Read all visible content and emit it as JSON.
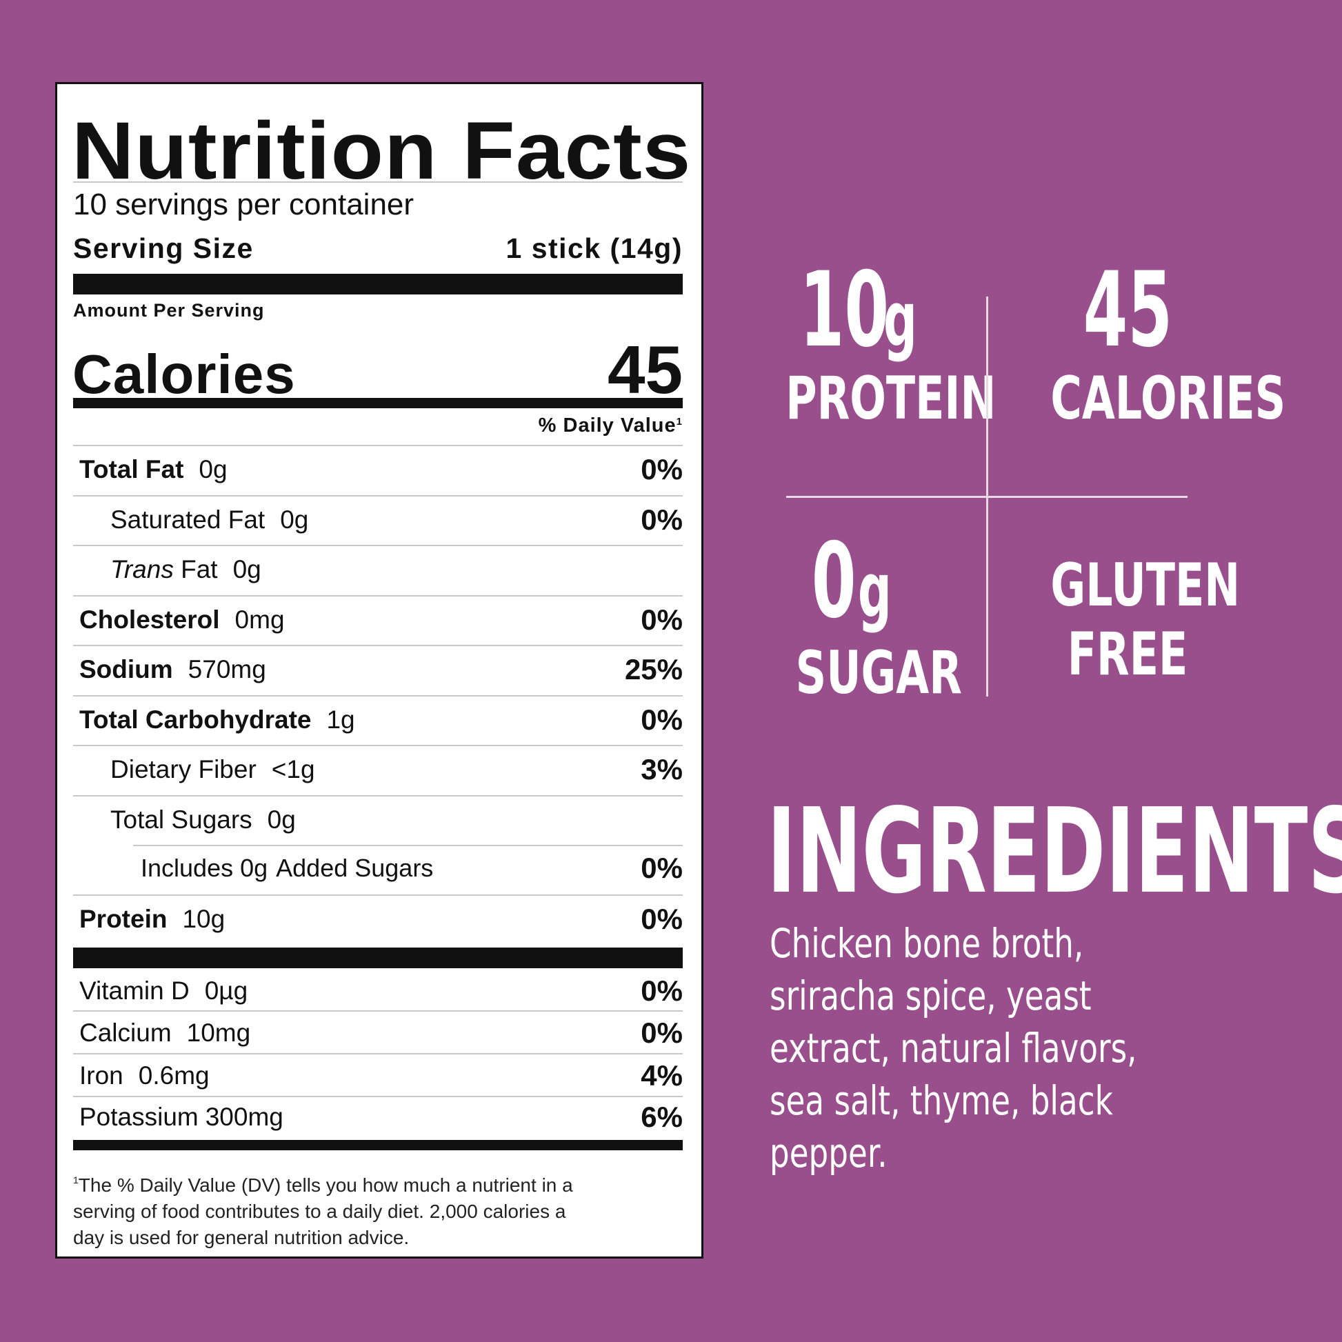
{
  "nutrition_facts": {
    "title": "Nutrition Facts",
    "servings_per_container": "10 servings per container",
    "serving_size_label": "Serving Size",
    "serving_size_value": "1 stick (14g)",
    "amount_per_serving": "Amount Per Serving",
    "calories_label": "Calories",
    "calories_value": "45",
    "daily_value_header": "% Daily Value",
    "daily_value_footnote_mark": "1",
    "nutrients": [
      {
        "name": "Total Fat",
        "amount": "0g",
        "dv": "0%"
      },
      {
        "name": "Saturated Fat",
        "amount": "0g",
        "dv": "0%"
      },
      {
        "name": "Trans",
        "name_suffix": " Fat",
        "amount": "0g",
        "dv": ""
      },
      {
        "name": "Cholesterol",
        "amount": "0mg",
        "dv": "0%"
      },
      {
        "name": "Sodium",
        "amount": "570mg",
        "dv": "25%"
      },
      {
        "name": "Total Carbohydrate",
        "amount": "1g",
        "dv": "0%"
      },
      {
        "name": "Dietary Fiber",
        "amount": "<1g",
        "dv": "3%"
      },
      {
        "name": "Total Sugars",
        "amount": "0g",
        "dv": ""
      },
      {
        "name": "Includes 0g",
        "amount": "Added Sugars",
        "dv": "0%"
      },
      {
        "name": "Protein",
        "amount": "10g",
        "dv": "0%"
      }
    ],
    "vitamins": [
      {
        "name": "Vitamin D",
        "amount": "0µg",
        "dv": "0%"
      },
      {
        "name": "Calcium",
        "amount": "10mg",
        "dv": "0%"
      },
      {
        "name": "Iron",
        "amount": "0.6mg",
        "dv": "4%"
      },
      {
        "name": "Potassium",
        "amount": "300mg",
        "dv": "6%"
      }
    ],
    "footnote_mark": "1",
    "footnote": "The % Daily Value (DV) tells you how much a nutrient in a serving of food contributes to a daily diet. 2,000 calories a day is used for general nutrition advice."
  },
  "highlights": {
    "protein": {
      "number": "10",
      "unit": "g",
      "label": "PROTEIN"
    },
    "calories": {
      "number": "45",
      "label": "CALORIES"
    },
    "sugar": {
      "number": "0",
      "unit": "g",
      "label": "SUGAR"
    },
    "gluten": {
      "line1": "GLUTEN",
      "line2": "FREE"
    }
  },
  "ingredients": {
    "title": "INGREDIENTS",
    "text": "Chicken bone broth, sriracha spice, yeast extract, natural flavors, sea salt, thyme, black pepper."
  },
  "colors": {
    "background": "#984f8c",
    "panel": "#ffffff",
    "text_dark": "#111111",
    "text_light": "#ffffff"
  }
}
